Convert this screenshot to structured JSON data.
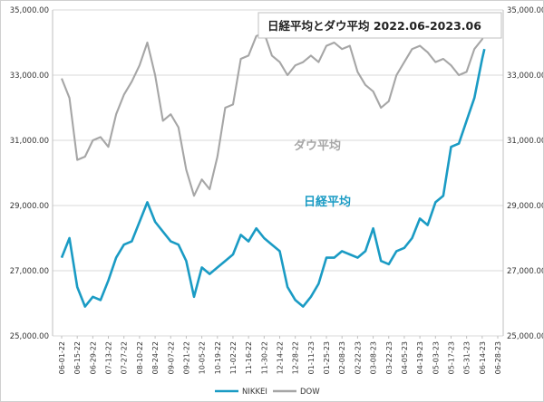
{
  "chart_data": {
    "type": "line",
    "title": "日経平均とダウ平均 2022.06-2023.06",
    "xlabel": "",
    "ylabel": "",
    "ylim": [
      25000,
      35000
    ],
    "grid": true,
    "legend_position": "bottom",
    "y_ticks_left": [
      "25,000.00",
      "27,000.00",
      "29,000.00",
      "31,000.00",
      "33,000.00",
      "35,000.00"
    ],
    "y_ticks_right": [
      "25,000.00",
      "27,000.00",
      "29,000.00",
      "31,000.00",
      "33,000.00",
      "35,000.00"
    ],
    "x_tick_labels": [
      "06-01-22",
      "06-15-22",
      "06-29-22",
      "07-13-22",
      "07-27-22",
      "08-10-22",
      "08-24-22",
      "09-07-22",
      "09-21-22",
      "10-05-22",
      "10-19-22",
      "11-02-22",
      "11-16-22",
      "11-30-22",
      "12-14-22",
      "12-28-22",
      "01-11-23",
      "01-25-23",
      "02-08-23",
      "02-22-23",
      "03-08-23",
      "03-22-23",
      "04-05-23",
      "04-19-23",
      "05-03-23",
      "05-17-23",
      "05-31-23",
      "06-14-23",
      "06-28-23"
    ],
    "annotations": [
      {
        "text": "ダウ平均",
        "series": "DOW"
      },
      {
        "text": "日経平均",
        "series": "NIKKEI"
      }
    ],
    "series": [
      {
        "name": "NIKKEI",
        "color": "#1a9bc4",
        "x": [
          "06-01-22",
          "06-08-22",
          "06-15-22",
          "06-22-22",
          "06-29-22",
          "07-06-22",
          "07-13-22",
          "07-20-22",
          "07-27-22",
          "08-03-22",
          "08-10-22",
          "08-17-22",
          "08-24-22",
          "08-31-22",
          "09-07-22",
          "09-14-22",
          "09-21-22",
          "09-28-22",
          "10-05-22",
          "10-12-22",
          "10-19-22",
          "10-26-22",
          "11-02-22",
          "11-09-22",
          "11-16-22",
          "11-23-22",
          "11-30-22",
          "12-07-22",
          "12-14-22",
          "12-21-22",
          "12-28-22",
          "01-04-23",
          "01-11-23",
          "01-18-23",
          "01-25-23",
          "02-01-23",
          "02-08-23",
          "02-15-23",
          "02-22-23",
          "03-01-23",
          "03-08-23",
          "03-15-23",
          "03-22-23",
          "03-29-23",
          "04-05-23",
          "04-12-23",
          "04-19-23",
          "04-26-23",
          "05-03-23",
          "05-10-23",
          "05-17-23",
          "05-24-23",
          "05-31-23",
          "06-07-23",
          "06-14-23",
          "06-16-23"
        ],
        "values": [
          27400,
          28000,
          26500,
          25900,
          26200,
          26100,
          26700,
          27400,
          27800,
          27900,
          28500,
          29100,
          28500,
          28200,
          27900,
          27800,
          27300,
          26200,
          27100,
          26900,
          27100,
          27300,
          27500,
          28100,
          27900,
          28300,
          28000,
          27800,
          27600,
          26500,
          26100,
          25900,
          26200,
          26600,
          27400,
          27400,
          27600,
          27500,
          27400,
          27600,
          28300,
          27300,
          27200,
          27600,
          27700,
          28000,
          28600,
          28400,
          29100,
          29300,
          30800,
          30900,
          31600,
          32300,
          33500,
          33800
        ]
      },
      {
        "name": "DOW",
        "color": "#a6a6a6",
        "x": [
          "06-01-22",
          "06-08-22",
          "06-15-22",
          "06-22-22",
          "06-29-22",
          "07-06-22",
          "07-13-22",
          "07-20-22",
          "07-27-22",
          "08-03-22",
          "08-10-22",
          "08-17-22",
          "08-24-22",
          "08-31-22",
          "09-07-22",
          "09-14-22",
          "09-21-22",
          "09-28-22",
          "10-05-22",
          "10-12-22",
          "10-19-22",
          "10-26-22",
          "11-02-22",
          "11-09-22",
          "11-16-22",
          "11-23-22",
          "11-30-22",
          "12-07-22",
          "12-14-22",
          "12-21-22",
          "12-28-22",
          "01-04-23",
          "01-11-23",
          "01-18-23",
          "01-25-23",
          "02-01-23",
          "02-08-23",
          "02-15-23",
          "02-22-23",
          "03-01-23",
          "03-08-23",
          "03-15-23",
          "03-22-23",
          "03-29-23",
          "04-05-23",
          "04-12-23",
          "04-19-23",
          "04-26-23",
          "05-03-23",
          "05-10-23",
          "05-17-23",
          "05-24-23",
          "05-31-23",
          "06-07-23",
          "06-14-23",
          "06-16-23"
        ],
        "values": [
          32900,
          32300,
          30400,
          30500,
          31000,
          31100,
          30800,
          31800,
          32400,
          32800,
          33300,
          34000,
          33000,
          31600,
          31800,
          31400,
          30100,
          29300,
          29800,
          29500,
          30500,
          32000,
          32100,
          33500,
          33600,
          34200,
          34300,
          33600,
          33400,
          33000,
          33300,
          33400,
          33600,
          33400,
          33900,
          34000,
          33800,
          33900,
          33100,
          32700,
          32500,
          32000,
          32200,
          33000,
          33400,
          33800,
          33900,
          33700,
          33400,
          33500,
          33300,
          33000,
          33100,
          33800,
          34100,
          34300
        ]
      }
    ]
  }
}
